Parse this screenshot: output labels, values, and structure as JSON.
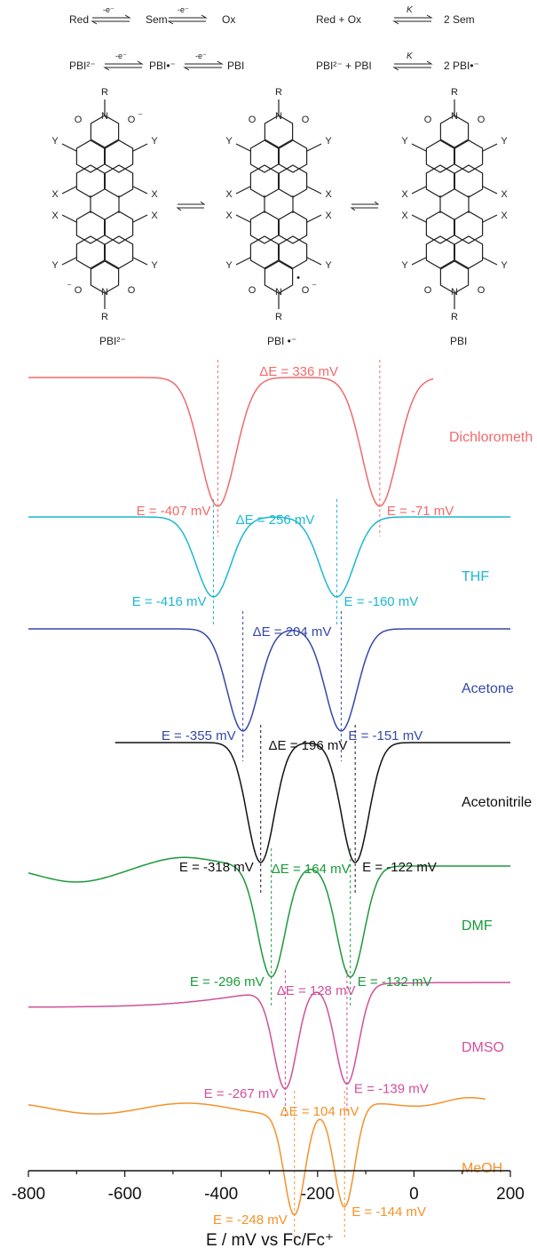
{
  "scheme": {
    "eq1": {
      "red": "Red",
      "sem": "Sem",
      "ox": "Ox",
      "e1": "-e⁻",
      "e2": "-e⁻"
    },
    "eq2": {
      "left": "Red + Ox",
      "k": "K",
      "right": "2 Sem"
    },
    "eq3": {
      "red": "PBI²⁻",
      "sem": "PBI•⁻",
      "ox": "PBI",
      "e1": "-e⁻",
      "e2": "-e⁻"
    },
    "eq4": {
      "left": "PBI²⁻ + PBI",
      "k": "K",
      "right": "2 PBI•⁻"
    },
    "structures": [
      {
        "label": "PBI²⁻"
      },
      {
        "label": "PBI •⁻"
      },
      {
        "label": "PBI"
      }
    ],
    "substituent_letters": {
      "r": "R",
      "x": "X",
      "y": "Y",
      "o": "O",
      "n": "N"
    }
  },
  "chart_data": {
    "type": "line",
    "title": "",
    "xlabel": "E / mV vs Fc/Fc⁺",
    "xlim": [
      -800,
      200
    ],
    "x_ticks": [
      -800,
      -600,
      -400,
      -200,
      0,
      200
    ],
    "grid": false,
    "legend": "series labels at right of each trace",
    "series": [
      {
        "name": "Dichlorometh",
        "color": "#f06a6a",
        "x_range": [
          -800,
          40
        ],
        "E1": -407,
        "E2": -71,
        "dE": 336,
        "label_E1": "E = -407 mV",
        "label_E2": "E = -71 mV",
        "label_dE": "ΔE = 336 mV"
      },
      {
        "name": "THF",
        "color": "#1bb8d0",
        "x_range": [
          -800,
          200
        ],
        "E1": -416,
        "E2": -160,
        "dE": 256,
        "label_E1": "E = -416 mV",
        "label_E2": "E = -160 mV",
        "label_dE": "ΔE = 256 mV"
      },
      {
        "name": "Acetone",
        "color": "#3548a8",
        "x_range": [
          -800,
          200
        ],
        "E1": -355,
        "E2": -151,
        "dE": 204,
        "label_E1": "E = -355 mV",
        "label_E2": "E = -151 mV",
        "label_dE": "ΔE = 204 mV"
      },
      {
        "name": "Acetonitrile",
        "color": "#111111",
        "x_range": [
          -620,
          200
        ],
        "E1": -318,
        "E2": -122,
        "dE": 196,
        "label_E1": "E = -318 mV",
        "label_E2": "E = -122 mV",
        "label_dE": "ΔE = 196 mV"
      },
      {
        "name": "DMF",
        "color": "#1a9a3a",
        "x_range": [
          -800,
          200
        ],
        "E1": -296,
        "E2": -132,
        "dE": 164,
        "label_E1": "E = -296 mV",
        "label_E2": "E = -132 mV",
        "label_dE": "ΔE = 164 mV"
      },
      {
        "name": "DMSO",
        "color": "#d0509a",
        "x_range": [
          -800,
          200
        ],
        "E1": -267,
        "E2": -139,
        "dE": 128,
        "label_E1": "E = -267 mV",
        "label_E2": "E = -139 mV",
        "label_dE": "ΔE = 128 mV"
      },
      {
        "name": "MeOH",
        "color": "#f4922a",
        "x_range": [
          -800,
          150
        ],
        "E1": -248,
        "E2": -144,
        "dE": 104,
        "label_E1": "E = -248 mV",
        "label_E2": "E = -144 mV",
        "label_dE": "ΔE = 104 mV"
      }
    ]
  }
}
